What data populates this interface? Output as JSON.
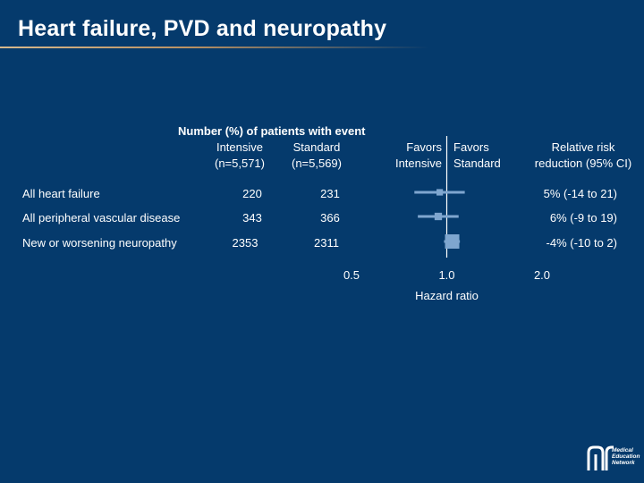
{
  "slide": {
    "title": "Heart failure, PVD and neuropathy"
  },
  "headers": {
    "group_header": "Number (%) of patients with event",
    "intensive": "Intensive",
    "intensive_n": "(n=5,571)",
    "standard": "Standard",
    "standard_n": "(n=5,569)",
    "favors_intensive_1": "Favors",
    "favors_intensive_2": "Intensive",
    "favors_standard_1": "Favors",
    "favors_standard_2": "Standard",
    "rr_1": "Relative risk",
    "rr_2": "reduction (95% CI)"
  },
  "rows": [
    {
      "outcome": "All heart failure",
      "intensive": "220",
      "standard": "231",
      "rrr": "5% (-14 to 21)"
    },
    {
      "outcome": "All peripheral vascular disease",
      "intensive": "343",
      "standard": "366",
      "rrr": "6% (-9 to 19)"
    },
    {
      "outcome": "New or worsening neuropathy",
      "intensive": "2353",
      "standard": "2311",
      "rrr": "-4% (-10 to 2)"
    }
  ],
  "logo": {
    "line1": "Medical",
    "line2": "Education",
    "line3": "Network"
  },
  "chart_data": {
    "type": "forest",
    "xlabel": "Hazard ratio",
    "x_scale": "log",
    "xlim": [
      0.5,
      2.0
    ],
    "x_ticks": [
      {
        "value": 0.5,
        "label": "0.5"
      },
      {
        "value": 1.0,
        "label": "1.0"
      },
      {
        "value": 2.0,
        "label": "2.0"
      }
    ],
    "reference_line": 1.0,
    "colors": {
      "marker": "#7fa6cf",
      "reference": "#ffffff"
    },
    "series": [
      {
        "category": "All heart failure",
        "hr": 0.95,
        "lo": 0.79,
        "hi": 1.14,
        "weight": 0.2
      },
      {
        "category": "All peripheral vascular disease",
        "hr": 0.94,
        "lo": 0.81,
        "hi": 1.09,
        "weight": 0.3
      },
      {
        "category": "New or worsening neuropathy",
        "hr": 1.04,
        "lo": 0.98,
        "hi": 1.1,
        "weight": 1.0
      }
    ]
  }
}
